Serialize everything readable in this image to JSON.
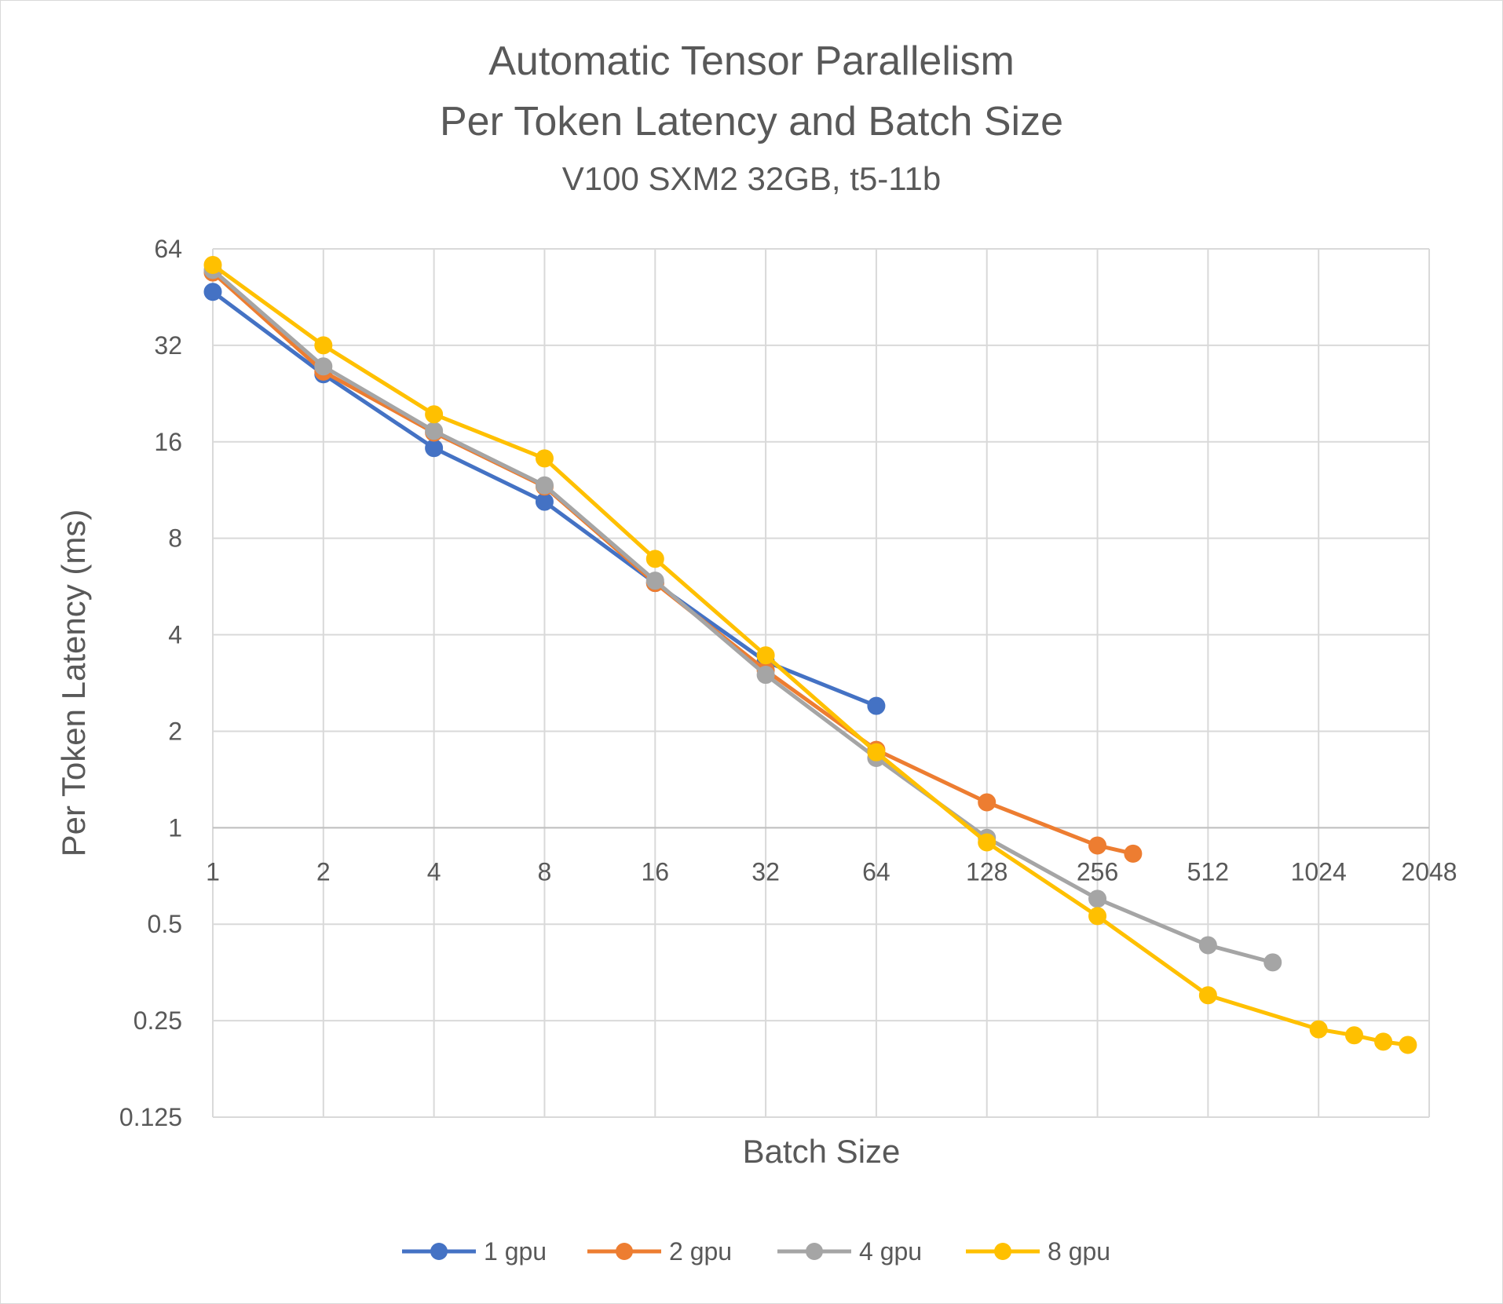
{
  "chart_data": {
    "type": "line",
    "title": "Automatic Tensor Parallelism",
    "subtitle": "Per Token Latency and Batch Size",
    "subtitle2": "V100 SXM2 32GB, t5-11b",
    "xlabel": "Batch Size",
    "ylabel": "Per Token Latency (ms)",
    "x_scale": "log2",
    "y_scale": "log2",
    "xlim": [
      1,
      2048
    ],
    "ylim": [
      0.125,
      64
    ],
    "x_ticks": [
      "1",
      "2",
      "4",
      "8",
      "16",
      "32",
      "64",
      "128",
      "256",
      "512",
      "1024",
      "2048"
    ],
    "x_tick_values": [
      1,
      2,
      4,
      8,
      16,
      32,
      64,
      128,
      256,
      512,
      1024,
      2048
    ],
    "y_ticks": [
      "64",
      "32",
      "16",
      "8",
      "4",
      "2",
      "1",
      "0.5",
      "0.25",
      "0.125"
    ],
    "y_tick_values": [
      64,
      32,
      16,
      8,
      4,
      2,
      1,
      0.5,
      0.25,
      0.125
    ],
    "grid": true,
    "legend_position": "bottom",
    "series": [
      {
        "name": "1 gpu",
        "color": "#4472C4",
        "points": [
          [
            1,
            47
          ],
          [
            2,
            26
          ],
          [
            4,
            15.3
          ],
          [
            8,
            10.4
          ],
          [
            16,
            5.8
          ],
          [
            32,
            3.3
          ],
          [
            64,
            2.4
          ]
        ]
      },
      {
        "name": "2 gpu",
        "color": "#ED7D31",
        "points": [
          [
            1,
            54
          ],
          [
            2,
            26.5
          ],
          [
            4,
            17.1
          ],
          [
            8,
            11.6
          ],
          [
            16,
            5.8
          ],
          [
            32,
            3.1
          ],
          [
            64,
            1.75
          ],
          [
            128,
            1.2
          ],
          [
            256,
            0.88
          ],
          [
            320,
            0.83
          ]
        ]
      },
      {
        "name": "4 gpu",
        "color": "#A5A5A5",
        "points": [
          [
            1,
            55
          ],
          [
            2,
            27.5
          ],
          [
            4,
            17.3
          ],
          [
            8,
            11.7
          ],
          [
            16,
            5.9
          ],
          [
            32,
            3.0
          ],
          [
            64,
            1.65
          ],
          [
            128,
            0.93
          ],
          [
            256,
            0.6
          ],
          [
            512,
            0.43
          ],
          [
            768,
            0.38
          ]
        ]
      },
      {
        "name": "8 gpu",
        "color": "#FFC000",
        "points": [
          [
            1,
            57
          ],
          [
            2,
            32
          ],
          [
            4,
            19.5
          ],
          [
            8,
            14.2
          ],
          [
            16,
            6.9
          ],
          [
            32,
            3.45
          ],
          [
            64,
            1.72
          ],
          [
            128,
            0.9
          ],
          [
            256,
            0.53
          ],
          [
            512,
            0.3
          ],
          [
            1024,
            0.235
          ],
          [
            1280,
            0.225
          ],
          [
            1536,
            0.215
          ],
          [
            1792,
            0.21
          ]
        ]
      }
    ]
  }
}
